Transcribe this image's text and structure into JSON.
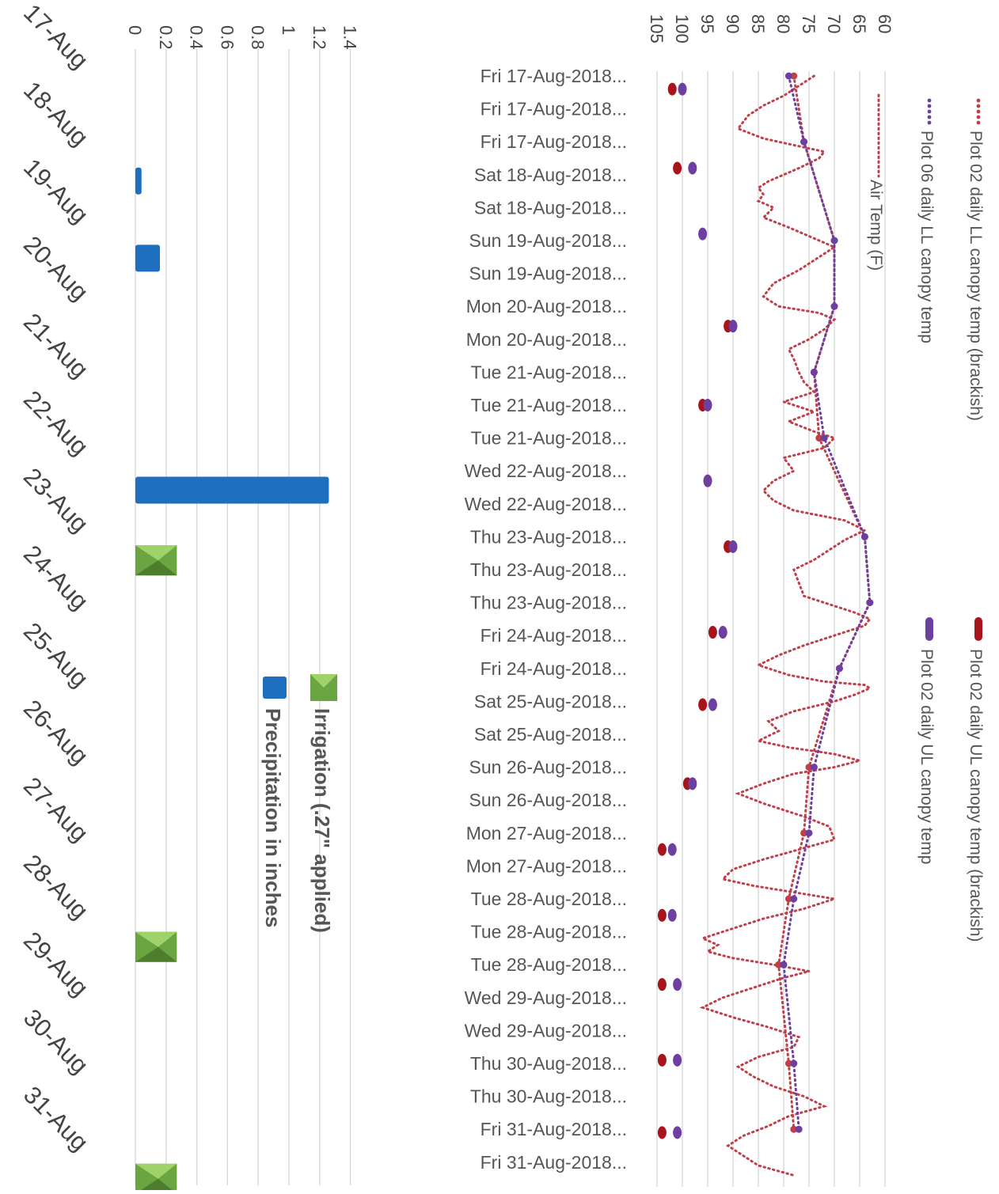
{
  "chart_data": [
    {
      "type": "line",
      "orientation": "rotated-90",
      "title": "",
      "ylabel": "",
      "ylim": [
        60,
        105
      ],
      "y_ticks": [
        60,
        65,
        70,
        75,
        80,
        85,
        90,
        95,
        100,
        105
      ],
      "grid": true,
      "legend_position": "right",
      "categories": [
        "Fri 17-Aug-2018...",
        "Fri 17-Aug-2018...",
        "Fri 17-Aug-2018...",
        "Sat 18-Aug-2018...",
        "Sat 18-Aug-2018...",
        "Sun 19-Aug-2018...",
        "Sun 19-Aug-2018...",
        "Mon 20-Aug-2018...",
        "Mon 20-Aug-2018...",
        "Tue 21-Aug-2018...",
        "Tue 21-Aug-2018...",
        "Tue 21-Aug-2018...",
        "Wed 22-Aug-2018...",
        "Wed 22-Aug-2018...",
        "Thu 23-Aug-2018...",
        "Thu 23-Aug-2018...",
        "Thu 23-Aug-2018...",
        "Fri 24-Aug-2018...",
        "Fri 24-Aug-2018...",
        "Sat 25-Aug-2018...",
        "Sat 25-Aug-2018...",
        "Sun 26-Aug-2018...",
        "Sun 26-Aug-2018...",
        "Mon 27-Aug-2018...",
        "Mon 27-Aug-2018...",
        "Tue 28-Aug-2018...",
        "Tue 28-Aug-2018...",
        "Tue 28-Aug-2018...",
        "Wed 29-Aug-2018...",
        "Wed 29-Aug-2018...",
        "Thu 30-Aug-2018...",
        "Thu 30-Aug-2018...",
        "Fri 31-Aug-2018...",
        "Fri 31-Aug-2018..."
      ],
      "series": [
        {
          "name": "Air Temp (F)",
          "style": "dotted-line",
          "color": "#c0404a",
          "points": [
            [
              0.0,
              74
            ],
            [
              0.3,
              77
            ],
            [
              0.6,
              80
            ],
            [
              0.9,
              84
            ],
            [
              1.2,
              87
            ],
            [
              1.6,
              89
            ],
            [
              1.9,
              84
            ],
            [
              2.1,
              78
            ],
            [
              2.3,
              72
            ],
            [
              2.5,
              73
            ],
            [
              2.8,
              77
            ],
            [
              3.0,
              80
            ],
            [
              3.2,
              83
            ],
            [
              3.4,
              85
            ],
            [
              3.6,
              84
            ],
            [
              3.8,
              85
            ],
            [
              4.0,
              82
            ],
            [
              4.3,
              84
            ],
            [
              4.6,
              79
            ],
            [
              5.0,
              73
            ],
            [
              5.2,
              70
            ],
            [
              5.6,
              74
            ],
            [
              5.9,
              77
            ],
            [
              6.3,
              82
            ],
            [
              6.7,
              84
            ],
            [
              7.0,
              81
            ],
            [
              7.2,
              73
            ],
            [
              7.4,
              70
            ],
            [
              7.7,
              72
            ],
            [
              8.0,
              75
            ],
            [
              8.3,
              79
            ],
            [
              8.6,
              78
            ],
            [
              9.0,
              77
            ],
            [
              9.3,
              76
            ],
            [
              9.6,
              74
            ],
            [
              9.9,
              80
            ],
            [
              10.2,
              74
            ],
            [
              10.5,
              79
            ],
            [
              10.8,
              74
            ],
            [
              11.0,
              70
            ],
            [
              11.3,
              72
            ],
            [
              11.6,
              80
            ],
            [
              12.0,
              78
            ],
            [
              12.3,
              82
            ],
            [
              12.6,
              84
            ],
            [
              12.9,
              82
            ],
            [
              13.2,
              78
            ],
            [
              13.5,
              68
            ],
            [
              13.8,
              64
            ],
            [
              14.1,
              68
            ],
            [
              14.4,
              71
            ],
            [
              14.7,
              74
            ],
            [
              15.0,
              78
            ],
            [
              15.4,
              77
            ],
            [
              15.8,
              76
            ],
            [
              16.1,
              70
            ],
            [
              16.3,
              66
            ],
            [
              16.5,
              63
            ],
            [
              16.7,
              64
            ],
            [
              17.0,
              70
            ],
            [
              17.3,
              76
            ],
            [
              17.6,
              81
            ],
            [
              17.9,
              85
            ],
            [
              18.2,
              79
            ],
            [
              18.4,
              72
            ],
            [
              18.5,
              64
            ],
            [
              18.6,
              63
            ],
            [
              18.8,
              66
            ],
            [
              19.0,
              70
            ],
            [
              19.3,
              78
            ],
            [
              19.6,
              83
            ],
            [
              19.9,
              81
            ],
            [
              20.2,
              85
            ],
            [
              20.4,
              79
            ],
            [
              20.6,
              70
            ],
            [
              20.8,
              65
            ],
            [
              21.0,
              70
            ],
            [
              21.2,
              78
            ],
            [
              21.5,
              84
            ],
            [
              21.8,
              89
            ],
            [
              22.1,
              84
            ],
            [
              22.5,
              76
            ],
            [
              22.8,
              71
            ],
            [
              23.2,
              70
            ],
            [
              23.5,
              77
            ],
            [
              23.8,
              84
            ],
            [
              24.1,
              90
            ],
            [
              24.4,
              92
            ],
            [
              24.6,
              86
            ],
            [
              24.8,
              78
            ],
            [
              25.0,
              70
            ],
            [
              25.3,
              76
            ],
            [
              25.6,
              84
            ],
            [
              25.9,
              90
            ],
            [
              26.2,
              96
            ],
            [
              26.4,
              93
            ],
            [
              26.6,
              95
            ],
            [
              26.8,
              90
            ],
            [
              27.0,
              82
            ],
            [
              27.2,
              75
            ],
            [
              27.4,
              80
            ],
            [
              27.7,
              86
            ],
            [
              28.0,
              92
            ],
            [
              28.3,
              96
            ],
            [
              28.6,
              90
            ],
            [
              28.9,
              83
            ],
            [
              29.2,
              77
            ],
            [
              29.5,
              78
            ],
            [
              29.8,
              85
            ],
            [
              30.1,
              89
            ],
            [
              30.4,
              86
            ],
            [
              30.7,
              82
            ],
            [
              31.0,
              76
            ],
            [
              31.3,
              72
            ],
            [
              31.6,
              79
            ],
            [
              31.9,
              83
            ],
            [
              32.2,
              88
            ],
            [
              32.5,
              91
            ],
            [
              32.8,
              88
            ],
            [
              33.1,
              85
            ],
            [
              33.4,
              78
            ]
          ]
        },
        {
          "name": "Plot 02 daily LL canopy temp (brackish)",
          "style": "dotted-marker",
          "color": "#c0404a",
          "points": [
            [
              0,
              78
            ],
            [
              2,
              76
            ],
            [
              5,
              70
            ],
            [
              7,
              70
            ],
            [
              9,
              74
            ],
            [
              11,
              73
            ],
            [
              14,
              64
            ],
            [
              16,
              63
            ],
            [
              18,
              69
            ],
            [
              21,
              75
            ],
            [
              23,
              76
            ],
            [
              25,
              79
            ],
            [
              27,
              81
            ],
            [
              30,
              79
            ],
            [
              32,
              78
            ]
          ]
        },
        {
          "name": "Plot 06 daily LL canopy temp",
          "style": "dotted-marker",
          "color": "#6d3fa0",
          "points": [
            [
              0,
              79
            ],
            [
              2,
              76
            ],
            [
              5,
              70
            ],
            [
              7,
              70
            ],
            [
              9,
              74
            ],
            [
              11,
              72
            ],
            [
              14,
              64
            ],
            [
              16,
              63
            ],
            [
              18,
              69
            ],
            [
              21,
              74
            ],
            [
              23,
              75
            ],
            [
              25,
              78
            ],
            [
              27,
              80
            ],
            [
              30,
              78
            ],
            [
              32,
              77
            ]
          ]
        },
        {
          "name": "Plot 02 daily UL canopy temp (brackish)",
          "style": "marker",
          "color": "#a8141b",
          "points": [
            [
              0.4,
              102
            ],
            [
              2.8,
              101
            ],
            [
              7.6,
              91
            ],
            [
              10.0,
              96
            ],
            [
              14.3,
              91
            ],
            [
              16.9,
              94
            ],
            [
              19.1,
              96
            ],
            [
              21.5,
              99
            ],
            [
              23.5,
              104
            ],
            [
              25.5,
              104
            ],
            [
              27.6,
              104
            ],
            [
              29.9,
              104
            ],
            [
              32.1,
              104
            ]
          ]
        },
        {
          "name": "Plot 02 daily UL canopy temp",
          "style": "marker",
          "color": "#6d3fa0",
          "points": [
            [
              0.4,
              100
            ],
            [
              2.8,
              98
            ],
            [
              4.8,
              96
            ],
            [
              7.6,
              90
            ],
            [
              10.0,
              95
            ],
            [
              12.3,
              95
            ],
            [
              14.3,
              90
            ],
            [
              16.9,
              92
            ],
            [
              19.1,
              94
            ],
            [
              21.5,
              98
            ],
            [
              23.5,
              102
            ],
            [
              25.5,
              102
            ],
            [
              27.6,
              101
            ],
            [
              29.9,
              101
            ],
            [
              32.1,
              101
            ]
          ]
        }
      ]
    },
    {
      "type": "bar",
      "orientation": "rotated-90",
      "title": "",
      "ylabel": "",
      "ylim": [
        0,
        1.4
      ],
      "y_ticks": [
        0,
        0.2,
        0.4,
        0.6,
        0.8,
        1,
        1.2,
        1.4
      ],
      "y_tick_labels": [
        "0",
        "0.2",
        "0.4",
        "0.6",
        "0.8",
        "1",
        "1.2",
        "1.4"
      ],
      "grid": true,
      "legend_position": "center",
      "categories": [
        "17-Aug",
        "18-Aug",
        "19-Aug",
        "20-Aug",
        "21-Aug",
        "22-Aug",
        "23-Aug",
        "24-Aug",
        "25-Aug",
        "26-Aug",
        "27-Aug",
        "28-Aug",
        "29-Aug",
        "30-Aug",
        "31-Aug"
      ],
      "series": [
        {
          "name": "Precipitation in inches",
          "color": "#1f6fc0",
          "values": [
            0,
            0.04,
            0.16,
            0,
            0,
            1.26,
            0,
            0,
            0,
            0,
            0,
            0,
            0,
            0,
            0
          ]
        },
        {
          "name": "Irrigation (.27\" applied)",
          "color": "#6aa541",
          "values": [
            0,
            0,
            0,
            0,
            0,
            0,
            0.27,
            0,
            0,
            0,
            0,
            0.27,
            0,
            0,
            0.27
          ]
        }
      ]
    }
  ]
}
